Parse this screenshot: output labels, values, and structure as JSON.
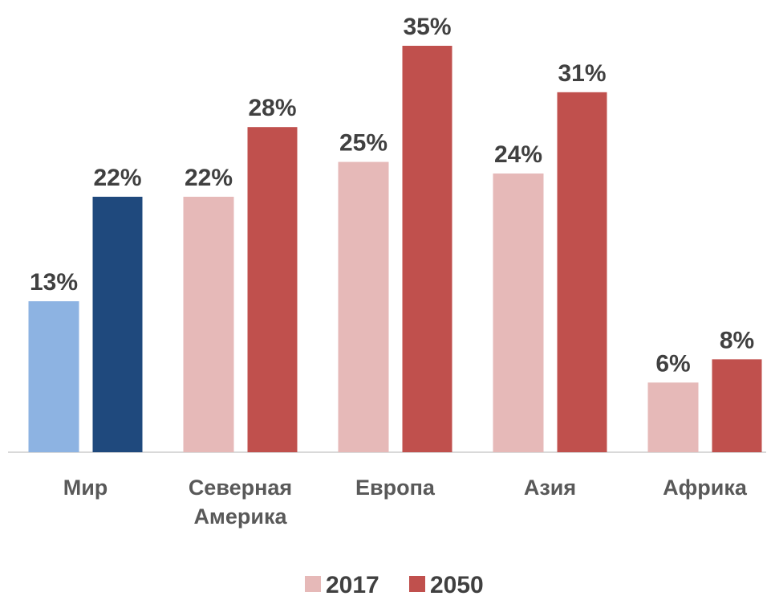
{
  "chart_data": {
    "type": "bar",
    "categories": [
      "Мир",
      "Северная Америка",
      "Европа",
      "Азия",
      "Африка"
    ],
    "series": [
      {
        "name": "2017",
        "color": "#e6b9b8",
        "colors": [
          "#8db3e2",
          "#e6b9b8",
          "#e6b9b8",
          "#e6b9b8",
          "#e6b9b8"
        ],
        "values": [
          13,
          22,
          25,
          24,
          6
        ],
        "value_labels": [
          "13%",
          "22%",
          "25%",
          "24%",
          "6%"
        ]
      },
      {
        "name": "2050",
        "color": "#c0504d",
        "colors": [
          "#1f497d",
          "#c0504d",
          "#c0504d",
          "#c0504d",
          "#c0504d"
        ],
        "values": [
          22,
          28,
          35,
          31,
          8
        ],
        "value_labels": [
          "22%",
          "28%",
          "35%",
          "31%",
          "8%"
        ]
      }
    ],
    "legend": "bottom"
  }
}
